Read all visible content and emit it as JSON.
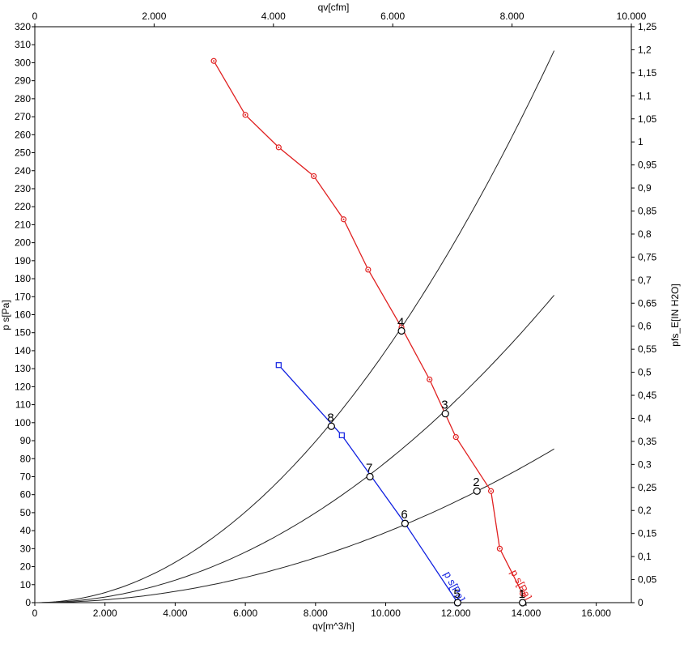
{
  "chart_data": {
    "type": "line",
    "title": "",
    "axes": {
      "x_bottom": {
        "label": "qv[m^3/h]",
        "range": [
          0,
          17000
        ],
        "ticks": [
          "0",
          "2.000",
          "4.000",
          "6.000",
          "8.000",
          "10.000",
          "12.000",
          "14.000",
          "16.000"
        ]
      },
      "x_top": {
        "label": "qv[cfm]",
        "range": [
          0,
          10000
        ],
        "ticks": [
          "0",
          "2.000",
          "4.000",
          "6.000",
          "8.000",
          "10.000"
        ]
      },
      "y_left": {
        "label": "p s[Pa]",
        "range": [
          0,
          320
        ],
        "step": 10
      },
      "y_right": {
        "label": "pfs_E[IN H2O]",
        "range": [
          0,
          1.25
        ],
        "ticks": [
          "0",
          "0,05",
          "0,1",
          "0,15",
          "0,2",
          "0,25",
          "0,3",
          "0,35",
          "0,4",
          "0,45",
          "0,5",
          "0,55",
          "0,6",
          "0,65",
          "0,7",
          "0,75",
          "0,8",
          "0,85",
          "0,9",
          "0,95",
          "1",
          "1,05",
          "1,1",
          "1,15",
          "1,2",
          "1,25"
        ]
      }
    },
    "grid": false,
    "series": [
      {
        "name": "p s[Pa]",
        "color": "#e02020",
        "marker": "circle",
        "points": [
          [
            5100,
            301
          ],
          [
            6000,
            271
          ],
          [
            6950,
            253
          ],
          [
            7950,
            237
          ],
          [
            8800,
            213
          ],
          [
            9500,
            185
          ],
          [
            10450,
            153
          ],
          [
            11250,
            124
          ],
          [
            12000,
            92
          ],
          [
            13000,
            62
          ],
          [
            13250,
            30
          ],
          [
            13900,
            5
          ]
        ]
      },
      {
        "name": "p s[Pa]",
        "color": "#1020e0",
        "marker": "square",
        "points": [
          [
            6950,
            132
          ],
          [
            8750,
            93
          ],
          [
            10550,
            44
          ],
          [
            12050,
            0
          ]
        ]
      }
    ],
    "system_curves": [
      {
        "color": "#222222",
        "k": 1.4e-06,
        "x_max": 14800
      },
      {
        "color": "#222222",
        "k": 7.8e-07,
        "x_max": 14800
      },
      {
        "color": "#222222",
        "k": 3.9e-07,
        "x_max": 14800
      }
    ],
    "operating_points": [
      {
        "label": "1",
        "x": 13900,
        "y": 0
      },
      {
        "label": "2",
        "x": 12600,
        "y": 62
      },
      {
        "label": "3",
        "x": 11700,
        "y": 105
      },
      {
        "label": "4",
        "x": 10450,
        "y": 151
      },
      {
        "label": "5",
        "x": 12050,
        "y": 0
      },
      {
        "label": "6",
        "x": 10550,
        "y": 44
      },
      {
        "label": "7",
        "x": 9550,
        "y": 70
      },
      {
        "label": "8",
        "x": 8450,
        "y": 98
      }
    ],
    "curve_labels": [
      {
        "text": "p s[Pa]",
        "color": "#e02020",
        "x": 13550,
        "y": 17
      },
      {
        "text": "p s[Pa]",
        "color": "#1020e0",
        "x": 11650,
        "y": 16
      }
    ]
  }
}
